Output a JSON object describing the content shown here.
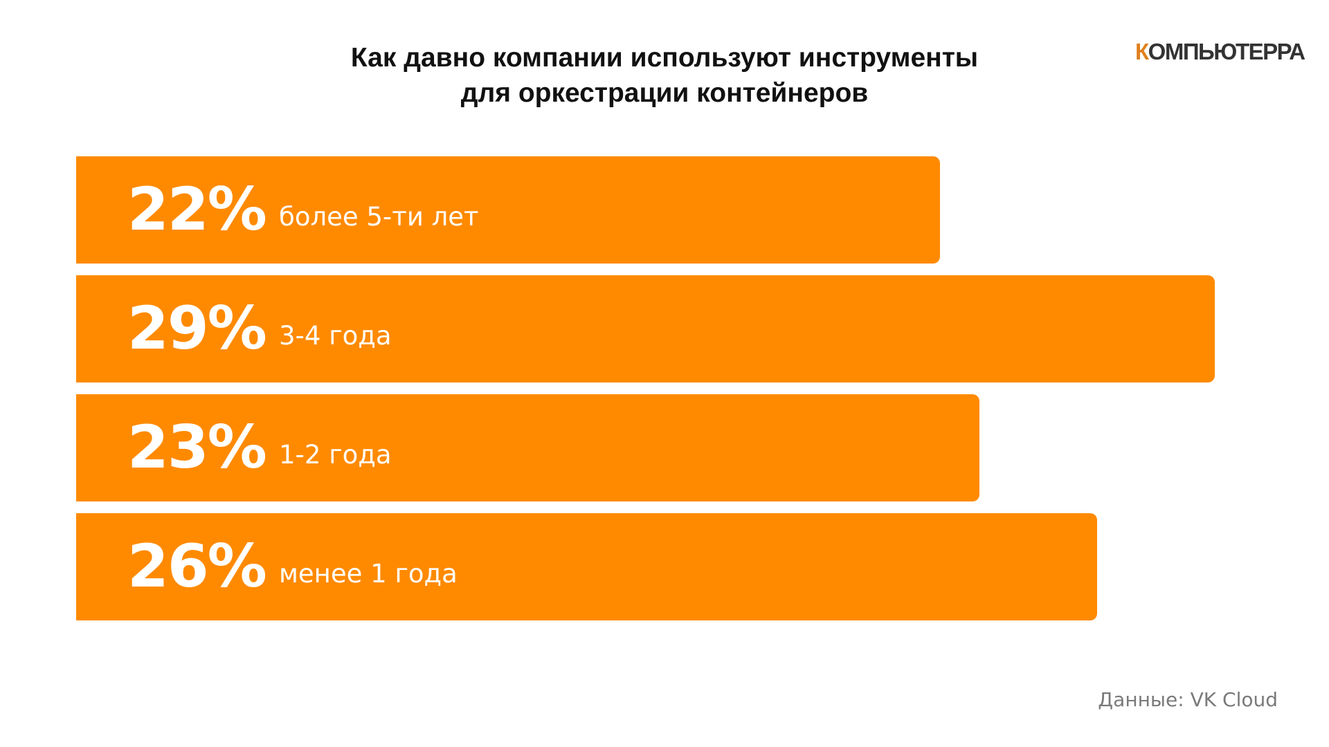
{
  "title_lines": [
    "Как давно компании используют инструменты",
    "для оркестрации контейнеров"
  ],
  "logo": {
    "text": "КОМПЬЮТЕРРА",
    "first_letter": "К",
    "rest": "ОМПЬЮТЕРРА"
  },
  "source": "Данные: VK Cloud",
  "colors": {
    "bar": "#ff8a00",
    "logo_accent": "#e07f1d"
  },
  "chart_data": {
    "type": "bar",
    "orientation": "horizontal",
    "categories": [
      "более 5-ти лет",
      "3-4 года",
      "1-2 года",
      "менее 1 года"
    ],
    "values": [
      22,
      29,
      23,
      26
    ],
    "value_labels": [
      "22%",
      "29%",
      "23%",
      "26%"
    ],
    "unit": "%",
    "title": "Как давно компании используют инструменты для оркестрации контейнеров",
    "xlabel": "",
    "ylabel": "",
    "grid": false,
    "legend": "none"
  }
}
